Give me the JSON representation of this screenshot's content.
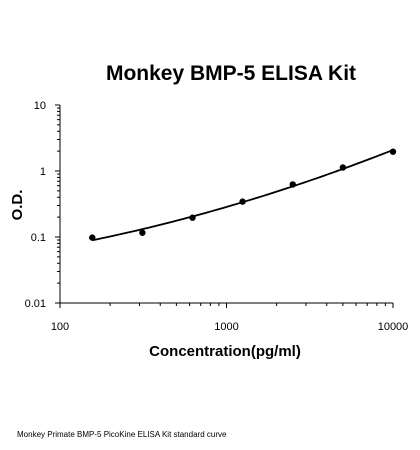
{
  "chart_data": {
    "type": "scatter",
    "title": "Monkey BMP-5 ELISA Kit",
    "xlabel": "Concentration(pg/ml)",
    "ylabel": "O.D.",
    "x_scale": "log",
    "y_scale": "log",
    "xlim": [
      100,
      10000
    ],
    "ylim": [
      0.01,
      10
    ],
    "x_ticks": [
      "100",
      "1000",
      "10000"
    ],
    "y_ticks": [
      "10",
      "1",
      "0.1",
      "0.01"
    ],
    "grid": false,
    "legend": "none",
    "series": [
      {
        "x": [
          156.25,
          312.5,
          625,
          1250,
          2500,
          5000,
          10000
        ],
        "y": [
          0.098,
          0.116,
          0.196,
          0.344,
          0.626,
          1.13,
          1.96
        ]
      }
    ],
    "fit_curve": true,
    "caption": "Monkey Primate BMP-5 PicoKine ELISA Kit standard curve"
  }
}
